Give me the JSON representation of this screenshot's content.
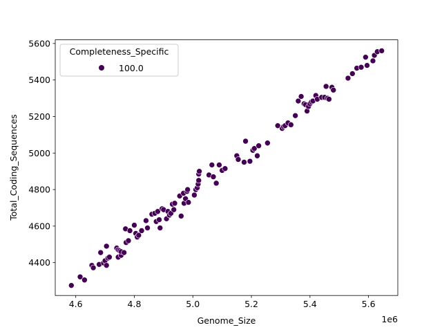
{
  "chart_data": {
    "type": "scatter",
    "xlabel": "Genome_Size",
    "ylabel": "Total_Coding_Sequences",
    "x_offset_label": "1e6",
    "xlim": [
      4.53,
      5.7
    ],
    "ylim": [
      4220,
      5620
    ],
    "xticks": [
      4.6,
      4.8,
      5.0,
      5.2,
      5.4,
      5.6
    ],
    "xtick_labels": [
      "4.6",
      "4.8",
      "5.0",
      "5.2",
      "5.4",
      "5.6"
    ],
    "yticks": [
      4400,
      4600,
      4800,
      5000,
      5200,
      5400,
      5600
    ],
    "ytick_labels": [
      "4400",
      "4600",
      "4800",
      "5000",
      "5200",
      "5400",
      "5600"
    ],
    "grid": false,
    "legend": {
      "title": "Completeness_Specific",
      "placement": "top-left",
      "entries": [
        {
          "label": "100.0",
          "color": "#440154"
        }
      ]
    },
    "marker_color": "#440154",
    "series": [
      {
        "name": "100.0",
        "points": [
          [
            4.585,
            4275
          ],
          [
            4.615,
            4322
          ],
          [
            4.63,
            4305
          ],
          [
            4.655,
            4385
          ],
          [
            4.66,
            4372
          ],
          [
            4.68,
            4390
          ],
          [
            4.685,
            4455
          ],
          [
            4.695,
            4398
          ],
          [
            4.7,
            4410
          ],
          [
            4.705,
            4490
          ],
          [
            4.705,
            4385
          ],
          [
            4.71,
            4425
          ],
          [
            4.715,
            4430
          ],
          [
            4.74,
            4480
          ],
          [
            4.745,
            4470
          ],
          [
            4.745,
            4430
          ],
          [
            4.75,
            4465
          ],
          [
            4.755,
            4440
          ],
          [
            4.755,
            4460
          ],
          [
            4.765,
            4455
          ],
          [
            4.77,
            4585
          ],
          [
            4.772,
            4510
          ],
          [
            4.78,
            4520
          ],
          [
            4.785,
            4575
          ],
          [
            4.8,
            4605
          ],
          [
            4.805,
            4560
          ],
          [
            4.81,
            4540
          ],
          [
            4.815,
            4550
          ],
          [
            4.825,
            4575
          ],
          [
            4.84,
            4630
          ],
          [
            4.845,
            4590
          ],
          [
            4.86,
            4665
          ],
          [
            4.87,
            4670
          ],
          [
            4.875,
            4625
          ],
          [
            4.88,
            4680
          ],
          [
            4.885,
            4635
          ],
          [
            4.888,
            4590
          ],
          [
            4.895,
            4695
          ],
          [
            4.9,
            4690
          ],
          [
            4.91,
            4640
          ],
          [
            4.915,
            4680
          ],
          [
            4.92,
            4660
          ],
          [
            4.925,
            4670
          ],
          [
            4.93,
            4720
          ],
          [
            4.935,
            4690
          ],
          [
            4.938,
            4725
          ],
          [
            4.955,
            4765
          ],
          [
            4.96,
            4655
          ],
          [
            4.968,
            4780
          ],
          [
            4.97,
            4725
          ],
          [
            4.975,
            4750
          ],
          [
            4.98,
            4790
          ],
          [
            4.982,
            4800
          ],
          [
            4.985,
            4730
          ],
          [
            5.005,
            4770
          ],
          [
            5.01,
            4800
          ],
          [
            5.015,
            4810
          ],
          [
            5.018,
            4830
          ],
          [
            5.02,
            4850
          ],
          [
            5.02,
            4885
          ],
          [
            5.022,
            4900
          ],
          [
            5.055,
            4880
          ],
          [
            5.065,
            4935
          ],
          [
            5.07,
            4870
          ],
          [
            5.08,
            4835
          ],
          [
            5.09,
            4935
          ],
          [
            5.1,
            4905
          ],
          [
            5.11,
            4915
          ],
          [
            5.15,
            4985
          ],
          [
            5.155,
            4965
          ],
          [
            5.175,
            4950
          ],
          [
            5.18,
            5065
          ],
          [
            5.195,
            4955
          ],
          [
            5.205,
            5015
          ],
          [
            5.21,
            5025
          ],
          [
            5.22,
            4985
          ],
          [
            5.225,
            5040
          ],
          [
            5.255,
            5055
          ],
          [
            5.29,
            5150
          ],
          [
            5.305,
            5135
          ],
          [
            5.31,
            5145
          ],
          [
            5.315,
            5150
          ],
          [
            5.325,
            5165
          ],
          [
            5.335,
            5155
          ],
          [
            5.35,
            5205
          ],
          [
            5.36,
            5285
          ],
          [
            5.37,
            5310
          ],
          [
            5.38,
            5270
          ],
          [
            5.385,
            5265
          ],
          [
            5.39,
            5230
          ],
          [
            5.395,
            5255
          ],
          [
            5.4,
            5270
          ],
          [
            5.405,
            5280
          ],
          [
            5.41,
            5285
          ],
          [
            5.42,
            5315
          ],
          [
            5.425,
            5295
          ],
          [
            5.44,
            5305
          ],
          [
            5.45,
            5305
          ],
          [
            5.455,
            5365
          ],
          [
            5.46,
            5300
          ],
          [
            5.465,
            5295
          ],
          [
            5.475,
            5360
          ],
          [
            5.48,
            5345
          ],
          [
            5.53,
            5410
          ],
          [
            5.545,
            5435
          ],
          [
            5.56,
            5465
          ],
          [
            5.575,
            5470
          ],
          [
            5.59,
            5525
          ],
          [
            5.595,
            5480
          ],
          [
            5.615,
            5505
          ],
          [
            5.62,
            5535
          ],
          [
            5.63,
            5555
          ],
          [
            5.645,
            5560
          ]
        ]
      }
    ]
  }
}
